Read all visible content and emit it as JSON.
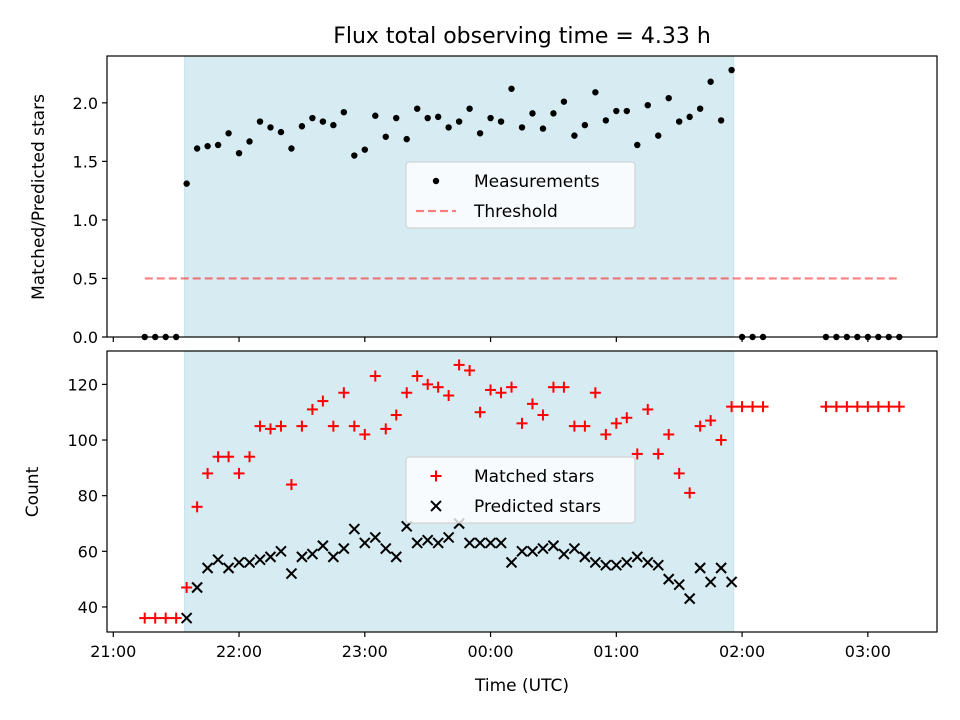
{
  "chart_data": [
    {
      "type": "scatter",
      "title": "Flux total observing time = 4.33 h",
      "xlabel": "",
      "ylabel": "Matched/Predicted stars",
      "xlim": [
        "20:57",
        "03:33"
      ],
      "ylim": [
        0,
        2.4
      ],
      "yticks": [
        "0.0",
        "0.5",
        "1.0",
        "1.5",
        "2.0"
      ],
      "shaded_interval": [
        "21:34",
        "01:56"
      ],
      "legend_position": "center",
      "series": [
        {
          "name": "Measurements",
          "marker": "dot",
          "color": "#000000",
          "x": [
            "21:15",
            "21:20",
            "21:25",
            "21:30",
            "21:35",
            "21:40",
            "21:45",
            "21:50",
            "21:55",
            "22:00",
            "22:05",
            "22:10",
            "22:15",
            "22:20",
            "22:25",
            "22:30",
            "22:35",
            "22:40",
            "22:45",
            "22:50",
            "22:55",
            "23:00",
            "23:05",
            "23:10",
            "23:15",
            "23:20",
            "23:25",
            "23:30",
            "23:35",
            "23:40",
            "23:45",
            "23:50",
            "23:55",
            "00:00",
            "00:05",
            "00:10",
            "00:15",
            "00:20",
            "00:25",
            "00:30",
            "00:35",
            "00:40",
            "00:45",
            "00:50",
            "00:55",
            "01:00",
            "01:05",
            "01:10",
            "01:15",
            "01:20",
            "01:25",
            "01:30",
            "01:35",
            "01:40",
            "01:45",
            "01:50",
            "01:55",
            "02:00",
            "02:05",
            "02:10",
            "02:40",
            "02:45",
            "02:50",
            "02:55",
            "03:00",
            "03:05",
            "03:10",
            "03:15"
          ],
          "y": [
            0,
            0,
            0,
            0,
            1.31,
            1.61,
            1.63,
            1.64,
            1.74,
            1.57,
            1.67,
            1.84,
            1.79,
            1.75,
            1.61,
            1.8,
            1.87,
            1.84,
            1.81,
            1.92,
            1.55,
            1.6,
            1.89,
            1.71,
            1.87,
            1.69,
            1.95,
            1.87,
            1.88,
            1.79,
            1.84,
            1.95,
            1.74,
            1.87,
            1.84,
            2.12,
            1.79,
            1.91,
            1.78,
            1.91,
            2.01,
            1.72,
            1.81,
            2.09,
            1.85,
            1.93,
            1.93,
            1.64,
            1.98,
            1.72,
            2.04,
            1.84,
            1.88,
            1.95,
            2.18,
            1.85,
            2.28,
            0,
            0,
            0,
            0,
            0,
            0,
            0,
            0,
            0,
            0,
            0
          ]
        },
        {
          "name": "Threshold",
          "line_style": "dashed",
          "color": "#f08080",
          "x": [
            "21:15",
            "03:15"
          ],
          "y": [
            0.5,
            0.5
          ]
        }
      ]
    },
    {
      "type": "scatter",
      "title": "",
      "xlabel": "Time (UTC)",
      "ylabel": "Count",
      "xlim": [
        "20:57",
        "03:33"
      ],
      "ylim": [
        31,
        132
      ],
      "yticks": [
        "40",
        "60",
        "80",
        "100",
        "120"
      ],
      "xticks": [
        "21:00",
        "22:00",
        "23:00",
        "00:00",
        "01:00",
        "02:00",
        "03:00"
      ],
      "shaded_interval": [
        "21:34",
        "01:56"
      ],
      "legend_position": "center",
      "series": [
        {
          "name": "Matched stars",
          "marker": "plus",
          "color": "#ff0000",
          "x": [
            "21:15",
            "21:20",
            "21:25",
            "21:30",
            "21:35",
            "21:40",
            "21:45",
            "21:50",
            "21:55",
            "22:00",
            "22:05",
            "22:10",
            "22:15",
            "22:20",
            "22:25",
            "22:30",
            "22:35",
            "22:40",
            "22:45",
            "22:50",
            "22:55",
            "23:00",
            "23:05",
            "23:10",
            "23:15",
            "23:20",
            "23:25",
            "23:30",
            "23:35",
            "23:40",
            "23:45",
            "23:50",
            "23:55",
            "00:00",
            "00:05",
            "00:10",
            "00:15",
            "00:20",
            "00:25",
            "00:30",
            "00:35",
            "00:40",
            "00:45",
            "00:50",
            "00:55",
            "01:00",
            "01:05",
            "01:10",
            "01:15",
            "01:20",
            "01:25",
            "01:30",
            "01:35",
            "01:40",
            "01:45",
            "01:50",
            "01:55",
            "02:00",
            "02:05",
            "02:10",
            "02:40",
            "02:45",
            "02:50",
            "02:55",
            "03:00",
            "03:05",
            "03:10",
            "03:15"
          ],
          "y": [
            36,
            36,
            36,
            36,
            47,
            76,
            88,
            94,
            94,
            88,
            94,
            105,
            104,
            105,
            84,
            105,
            111,
            114,
            105,
            117,
            105,
            102,
            123,
            104,
            109,
            117,
            123,
            120,
            119,
            116,
            127,
            125,
            110,
            118,
            117,
            119,
            106,
            113,
            109,
            119,
            119,
            105,
            105,
            117,
            102,
            106,
            108,
            95,
            111,
            95,
            102,
            88,
            81,
            105,
            107,
            100,
            112,
            112,
            112,
            112,
            112,
            112,
            112,
            112,
            112,
            112,
            112,
            112
          ]
        },
        {
          "name": "Predicted stars",
          "marker": "x",
          "color": "#000000",
          "x": [
            "21:35",
            "21:40",
            "21:45",
            "21:50",
            "21:55",
            "22:00",
            "22:05",
            "22:10",
            "22:15",
            "22:20",
            "22:25",
            "22:30",
            "22:35",
            "22:40",
            "22:45",
            "22:50",
            "22:55",
            "23:00",
            "23:05",
            "23:10",
            "23:15",
            "23:20",
            "23:25",
            "23:30",
            "23:35",
            "23:40",
            "23:45",
            "23:50",
            "23:55",
            "00:00",
            "00:05",
            "00:10",
            "00:15",
            "00:20",
            "00:25",
            "00:30",
            "00:35",
            "00:40",
            "00:45",
            "00:50",
            "00:55",
            "01:00",
            "01:05",
            "01:10",
            "01:15",
            "01:20",
            "01:25",
            "01:30",
            "01:35",
            "01:40",
            "01:45",
            "01:50",
            "01:55"
          ],
          "y": [
            36,
            47,
            54,
            57,
            54,
            56,
            56,
            57,
            58,
            60,
            52,
            58,
            59,
            62,
            58,
            61,
            68,
            63,
            65,
            61,
            58,
            69,
            63,
            64,
            63,
            65,
            70,
            63,
            63,
            63,
            63,
            56,
            60,
            60,
            61,
            62,
            59,
            61,
            58,
            56,
            55,
            55,
            56,
            58,
            56,
            55,
            50,
            48,
            43,
            54,
            49,
            54,
            49
          ]
        }
      ]
    }
  ],
  "colors": {
    "span": "#add8e6",
    "span_alpha": 0.5,
    "threshold": "#ff0000",
    "threshold_alpha": 0.5
  }
}
